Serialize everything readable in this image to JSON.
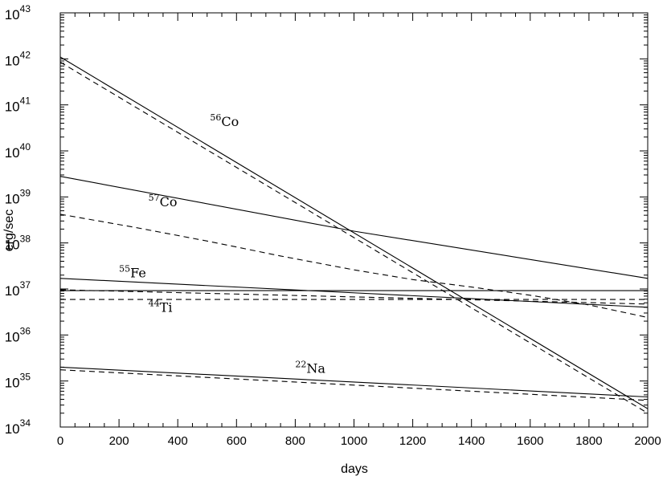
{
  "chart_data": {
    "type": "line",
    "title": "",
    "xlabel": "days",
    "ylabel": "erg/sec",
    "xlim": [
      0,
      2000
    ],
    "ylim_log10": [
      34,
      43
    ],
    "yscale": "log",
    "grid": false,
    "x_ticks": [
      "0",
      "200",
      "400",
      "600",
      "800",
      "1000",
      "1200",
      "1400",
      "1600",
      "1800",
      "2000"
    ],
    "y_tick_base": "10",
    "y_tick_exponents": [
      "34",
      "35",
      "36",
      "37",
      "38",
      "39",
      "40",
      "41",
      "42",
      "43"
    ],
    "annotations": [
      {
        "mass": "56",
        "element": "Co",
        "x": 510,
        "y": 3.5e+40
      },
      {
        "mass": "57",
        "element": "Co",
        "x": 300,
        "y": 6.3e+38
      },
      {
        "mass": "55",
        "element": "Fe",
        "x": 200,
        "y": 1.8e+37
      },
      {
        "mass": "44",
        "element": "Ti",
        "x": 300,
        "y": 3.2e+36
      },
      {
        "mass": "22",
        "element": "Na",
        "x": 800,
        "y": 1.5e+35
      }
    ],
    "series": [
      {
        "style": "solid",
        "x": [
          0,
          2000
        ],
        "y": [
          1.1e+42,
          2.5e+34
        ]
      },
      {
        "style": "dashed",
        "x": [
          0,
          2000
        ],
        "y": [
          8.5e+41,
          2e+34
        ]
      },
      {
        "style": "solid",
        "x": [
          0,
          1000,
          2000
        ],
        "y": [
          2.8e+39,
          1.8e+38,
          1.7e+37
        ]
      },
      {
        "style": "dashed",
        "x": [
          0,
          250,
          500,
          750,
          1000,
          1200,
          1400,
          1600,
          1800,
          2000
        ],
        "y": [
          4.2e+38,
          2.2e+38,
          1.1e+38,
          5.2e+37,
          2.6e+37,
          1.6e+37,
          1.1e+37,
          7.3e+36,
          4.5e+36,
          2.4e+36
        ]
      },
      {
        "style": "solid",
        "x": [
          0,
          2000
        ],
        "y": [
          1.7e+37,
          4e+36
        ]
      },
      {
        "style": "dashed",
        "x": [
          0,
          2000
        ],
        "y": [
          9.6e+36,
          4.7e+36
        ]
      },
      {
        "style": "solid",
        "x": [
          0,
          2000
        ],
        "y": [
          9.2e+36,
          9.2e+36
        ]
      },
      {
        "style": "dashed",
        "x": [
          0,
          2000
        ],
        "y": [
          5.9e+36,
          5.9e+36
        ]
      },
      {
        "style": "solid",
        "x": [
          0,
          2000
        ],
        "y": [
          2e+35,
          4.5e+34
        ]
      },
      {
        "style": "dashed",
        "x": [
          0,
          2000
        ],
        "y": [
          1.75e+35,
          3.8e+34
        ]
      }
    ]
  }
}
